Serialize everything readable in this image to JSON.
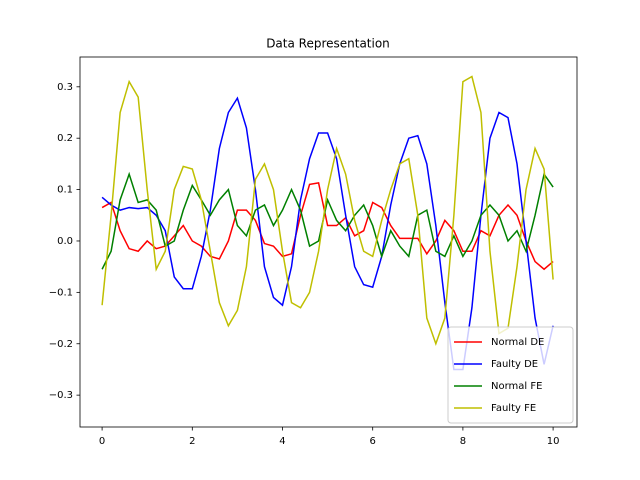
{
  "chart_data": {
    "type": "line",
    "title": "Data Representation",
    "x": [
      0,
      0.2,
      0.4,
      0.6,
      0.8,
      1,
      1.2,
      1.4,
      1.6,
      1.8,
      2,
      2.2,
      2.4,
      2.6,
      2.8,
      3,
      3.2,
      3.4,
      3.6,
      3.8,
      4,
      4.2,
      4.4,
      4.6,
      4.8,
      5,
      5.2,
      5.4,
      5.6,
      5.8,
      6,
      6.2,
      6.4,
      6.6,
      6.8,
      7,
      7.2,
      7.4,
      7.6,
      7.8,
      8,
      8.2,
      8.4,
      8.6,
      8.8,
      9,
      9.2,
      9.4,
      9.6,
      9.8,
      10
    ],
    "series": [
      {
        "name": "Normal DE",
        "color": "#ff0000",
        "values": [
          0.065,
          0.075,
          0.02,
          -0.015,
          -0.02,
          0,
          -0.015,
          -0.01,
          0.01,
          0.03,
          0,
          -0.01,
          -0.03,
          -0.035,
          0,
          0.06,
          0.06,
          0.04,
          -0.005,
          -0.01,
          -0.03,
          -0.025,
          0.05,
          0.11,
          0.113,
          0.03,
          0.03,
          0.045,
          0.01,
          0.02,
          0.075,
          0.065,
          0.03,
          0.005,
          0.005,
          0.005,
          -0.025,
          0,
          0.04,
          0.02,
          -0.02,
          -0.02,
          0.02,
          0.01,
          0.05,
          0.07,
          0.05,
          0,
          -0.04,
          -0.055,
          -0.04
        ]
      },
      {
        "name": "Faulty DE",
        "color": "#0000ff",
        "values": [
          0.085,
          0.07,
          0.06,
          0.065,
          0.063,
          0.065,
          0.05,
          0.02,
          -0.07,
          -0.093,
          -0.093,
          -0.03,
          0.06,
          0.18,
          0.25,
          0.278,
          0.22,
          0.1,
          -0.05,
          -0.11,
          -0.125,
          -0.05,
          0.08,
          0.16,
          0.21,
          0.21,
          0.16,
          0.05,
          -0.05,
          -0.085,
          -0.09,
          -0.03,
          0.07,
          0.15,
          0.2,
          0.205,
          0.15,
          0.03,
          -0.12,
          -0.25,
          -0.25,
          -0.13,
          0.05,
          0.2,
          0.25,
          0.24,
          0.15,
          0,
          -0.15,
          -0.24,
          -0.165
        ]
      },
      {
        "name": "Normal FE",
        "color": "#008000",
        "values": [
          -0.055,
          -0.02,
          0.08,
          0.13,
          0.075,
          0.08,
          0.06,
          -0.01,
          0,
          0.06,
          0.108,
          0.08,
          0.05,
          0.08,
          0.1,
          0.03,
          0.01,
          0.06,
          0.07,
          0.03,
          0.06,
          0.1,
          0.06,
          -0.01,
          0,
          0.08,
          0.04,
          0.02,
          0.05,
          0.07,
          0.03,
          -0.03,
          0.02,
          -0.01,
          -0.03,
          0.05,
          0.06,
          -0.02,
          -0.03,
          0.01,
          -0.03,
          0,
          0.05,
          0.07,
          0.05,
          0,
          0.02,
          -0.02,
          0.05,
          0.13,
          0.105
        ]
      },
      {
        "name": "Faulty FE",
        "color": "#bfbf00",
        "values": [
          -0.125,
          0.05,
          0.25,
          0.31,
          0.28,
          0.1,
          -0.055,
          -0.02,
          0.1,
          0.145,
          0.14,
          0.08,
          -0.02,
          -0.12,
          -0.165,
          -0.135,
          -0.05,
          0.12,
          0.15,
          0.1,
          -0.02,
          -0.12,
          -0.13,
          -0.1,
          -0.02,
          0.1,
          0.18,
          0.13,
          0.04,
          -0.02,
          -0.03,
          0.04,
          0.1,
          0.15,
          0.16,
          0.05,
          -0.15,
          -0.2,
          -0.15,
          0.05,
          0.31,
          0.32,
          0.25,
          -0.02,
          -0.18,
          -0.17,
          -0.05,
          0.1,
          0.18,
          0.14,
          -0.075
        ]
      }
    ],
    "xlim": [
      -0.49,
      10.53
    ],
    "ylim": [
      -0.362,
      0.358
    ],
    "xticks": [
      0,
      2,
      4,
      6,
      8,
      10
    ],
    "yticks": [
      {
        "value": -0.3,
        "label": "−0.3"
      },
      {
        "value": -0.2,
        "label": "−0.2"
      },
      {
        "value": -0.1,
        "label": "−0.1"
      },
      {
        "value": 0,
        "label": "0.0"
      },
      0.1,
      0.2,
      0.3
    ],
    "grid": false,
    "legend": "lower right"
  }
}
